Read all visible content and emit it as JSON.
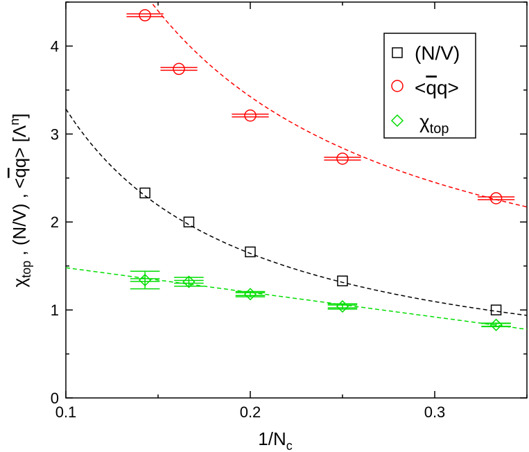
{
  "chart_data": {
    "type": "scatter",
    "title": "",
    "xlabel": "1/N",
    "xlabel_sub": "c",
    "ylabel": "χ_top , (N/V) , <q̄q> [Λ^n]",
    "ylabel_parts": {
      "chi": "χ",
      "chi_sub": "top",
      "mid": " , (N/V) , <",
      "qbar": "q",
      "q": "q",
      "close": "> [Λ",
      "sup": "n",
      "end": "]"
    },
    "xlim": [
      0.1,
      0.35
    ],
    "ylim": [
      0,
      4.5
    ],
    "x_ticks": [
      0.1,
      0.2,
      0.3
    ],
    "x_tick_labels": [
      "0.1",
      "0.2",
      "0.3"
    ],
    "y_ticks": [
      0,
      1,
      2,
      3,
      4
    ],
    "y_tick_labels": [
      "0",
      "1",
      "2",
      "3",
      "4"
    ],
    "legend_position": "top-right",
    "series": [
      {
        "name": "(N/V)",
        "label": "(N/V)",
        "color": "#000000",
        "marker": "square",
        "points": [
          {
            "x": 0.1429,
            "y": 2.33,
            "xerr": 0,
            "yerr": 0
          },
          {
            "x": 0.1667,
            "y": 2.0,
            "xerr": 0,
            "yerr": 0
          },
          {
            "x": 0.2,
            "y": 1.66,
            "xerr": 0,
            "yerr": 0
          },
          {
            "x": 0.25,
            "y": 1.33,
            "xerr": 0,
            "yerr": 0
          },
          {
            "x": 0.3333,
            "y": 1.0,
            "xerr": 0,
            "yerr": 0
          }
        ],
        "fit": {
          "form": "a + b/x",
          "a": 0.0,
          "b": 0.3285,
          "color": "#000000",
          "x_range": [
            0.1,
            0.35
          ]
        }
      },
      {
        "name": "<qbar q>",
        "label": "<qq>",
        "label_parts": {
          "open": "<",
          "qbar": "q",
          "q": "q",
          "close": ">"
        },
        "color": "#ff0000",
        "marker": "circle",
        "points": [
          {
            "x": 0.1429,
            "y": 4.35,
            "xerr": 0.01,
            "yerr": 0
          },
          {
            "x": 0.1613,
            "y": 3.74,
            "xerr": 0.01,
            "yerr": 0
          },
          {
            "x": 0.2,
            "y": 3.21,
            "xerr": 0.01,
            "yerr": 0
          },
          {
            "x": 0.25,
            "y": 2.72,
            "xerr": 0.01,
            "yerr": 0
          },
          {
            "x": 0.3333,
            "y": 2.27,
            "xerr": 0.01,
            "yerr": 0
          }
        ],
        "fit": {
          "form": "a + b/x",
          "a": 0.5,
          "b": 0.585,
          "color": "#ff0000",
          "x_range": [
            0.1,
            0.35
          ]
        }
      },
      {
        "name": "chi_top",
        "label": "χ",
        "label_sub": "top",
        "color": "#00dd00",
        "marker": "diamond",
        "points": [
          {
            "x": 0.1429,
            "y": 1.34,
            "xerr": 0.008,
            "yerr": 0.1
          },
          {
            "x": 0.1667,
            "y": 1.32,
            "xerr": 0.008,
            "yerr": 0.05
          },
          {
            "x": 0.2,
            "y": 1.18,
            "xerr": 0.008,
            "yerr": 0.03
          },
          {
            "x": 0.25,
            "y": 1.04,
            "xerr": 0.008,
            "yerr": 0.03
          },
          {
            "x": 0.3333,
            "y": 0.83,
            "xerr": 0.008,
            "yerr": 0.02
          }
        ],
        "fit": {
          "form": "a + b*x",
          "a": 1.76,
          "b": -2.8,
          "color": "#00dd00",
          "x_range": [
            0.1,
            0.35
          ]
        }
      }
    ]
  }
}
